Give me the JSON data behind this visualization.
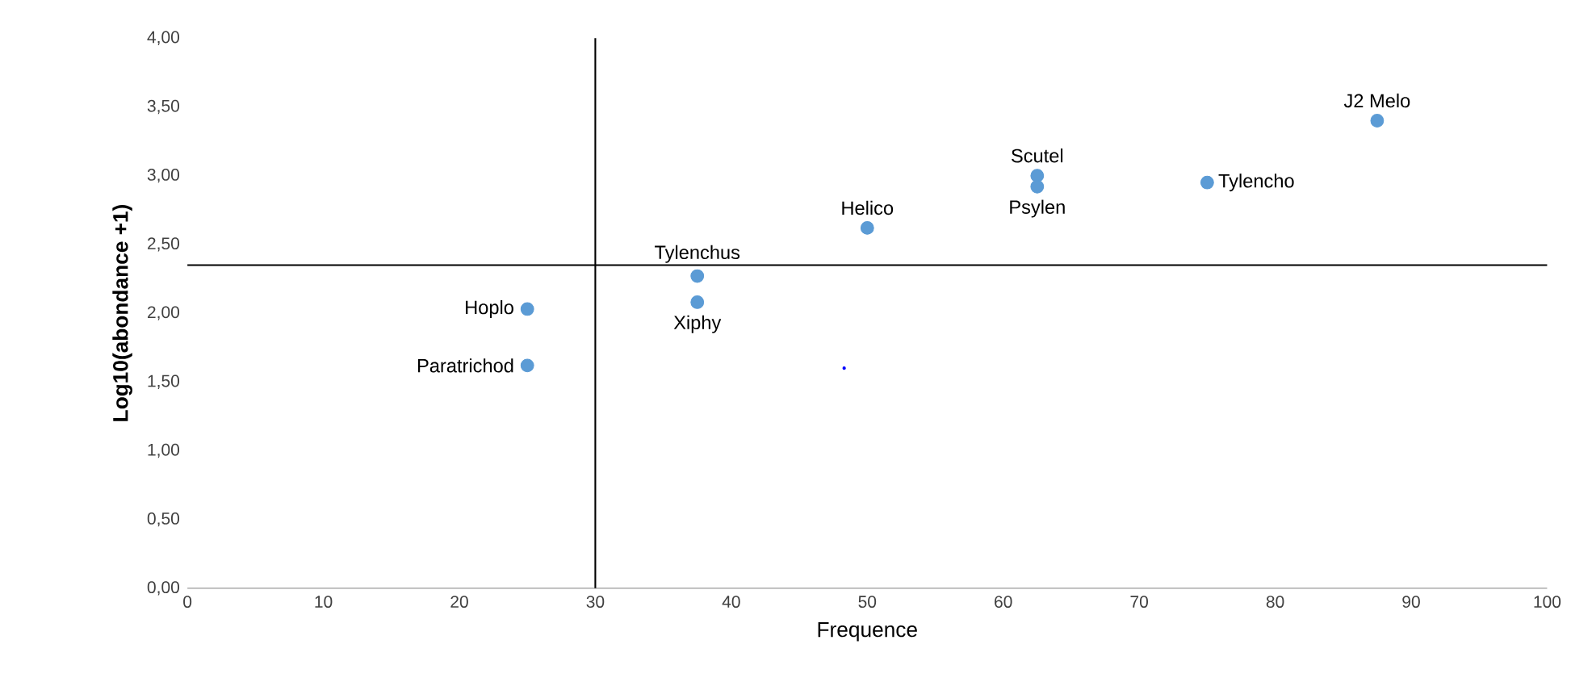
{
  "chart_data": {
    "type": "scatter",
    "xlabel": "Frequence",
    "ylabel": "Log10(abondance +1)",
    "xlim": [
      0,
      100
    ],
    "xticks": [
      0,
      10,
      20,
      30,
      40,
      50,
      60,
      70,
      80,
      90,
      100
    ],
    "ylim": [
      0,
      4
    ],
    "yticks": [
      {
        "value": 0,
        "label": "0,00"
      },
      {
        "value": 0.5,
        "label": "0,50"
      },
      {
        "value": 1,
        "label": "1,00"
      },
      {
        "value": 1.5,
        "label": "1,50"
      },
      {
        "value": 2,
        "label": "2,00"
      },
      {
        "value": 2.5,
        "label": "2,50"
      },
      {
        "value": 3,
        "label": "3,00"
      },
      {
        "value": 3.5,
        "label": "3,50"
      },
      {
        "value": 4,
        "label": "4,00"
      }
    ],
    "grid": false,
    "series": [
      {
        "color": "#5b9bd5",
        "x": [
          87.5,
          62.5,
          62.5,
          75,
          50,
          37.5,
          37.5,
          25,
          25
        ],
        "values": [
          3.4,
          3.0,
          2.92,
          2.95,
          2.62,
          2.27,
          2.08,
          2.03,
          1.62
        ]
      },
      {
        "color": "#0000ff",
        "x": [
          48.3
        ],
        "values": [
          1.6
        ]
      }
    ],
    "ref_lines": [
      {
        "axis": "x",
        "value": 30,
        "color": "#000000"
      },
      {
        "axis": "y",
        "value": 2.35,
        "color": "#000000"
      }
    ],
    "annotations": [
      {
        "text": "J2 Melo",
        "x": 87.5,
        "y": 3.4
      },
      {
        "text": "Scutel",
        "x": 62.5,
        "y": 3.0
      },
      {
        "text": "Psylen",
        "x": 62.5,
        "y": 2.92
      },
      {
        "text": "Tylencho",
        "x": 75,
        "y": 2.95
      },
      {
        "text": "Helico",
        "x": 50,
        "y": 2.62
      },
      {
        "text": "Tylenchus",
        "x": 37.5,
        "y": 2.27
      },
      {
        "text": "Xiphy",
        "x": 37.5,
        "y": 2.08
      },
      {
        "text": "Hoplo",
        "x": 25,
        "y": 2.03
      },
      {
        "text": "Paratrichod",
        "x": 25,
        "y": 1.62
      }
    ]
  }
}
